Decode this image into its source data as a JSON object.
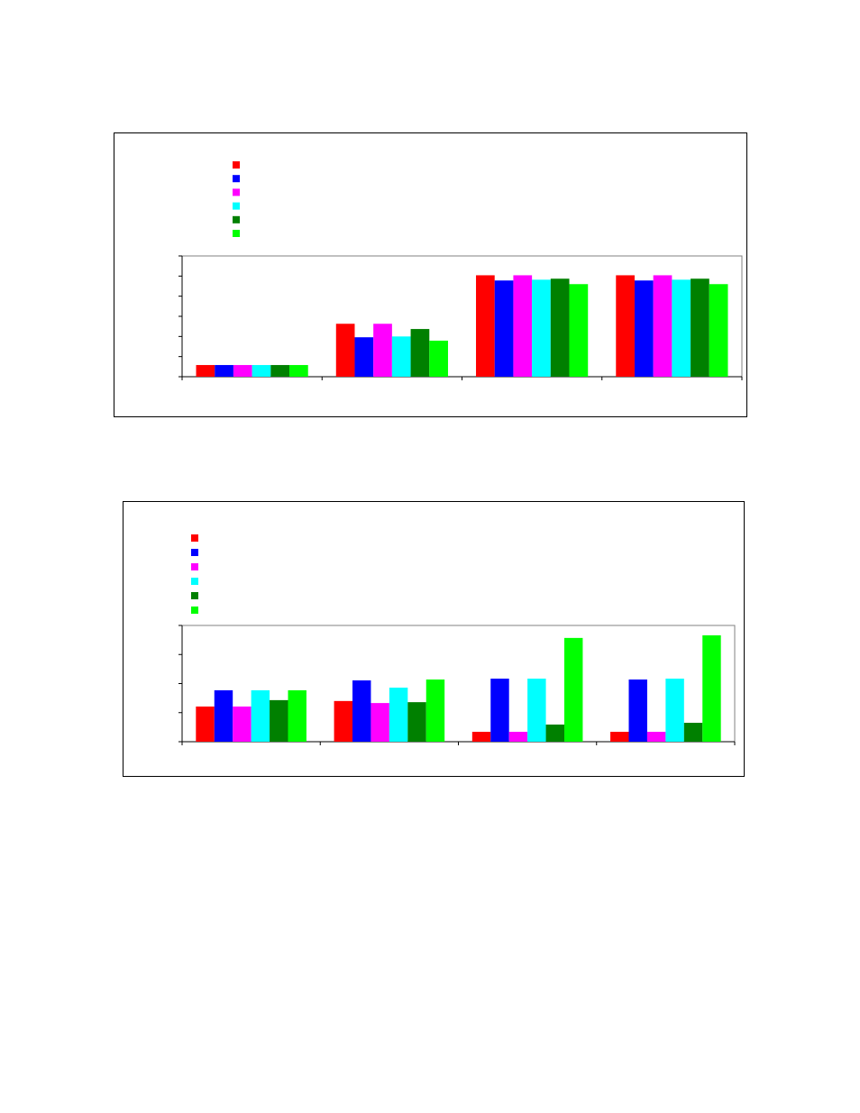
{
  "chart_data": [
    {
      "type": "bar",
      "categories": [
        null,
        null,
        null,
        null
      ],
      "ylim": [
        0,
        6
      ],
      "yticks": [
        0,
        1,
        2,
        3,
        4,
        5,
        6
      ],
      "series": [
        {
          "color": "#ff0000",
          "values": [
            0.58,
            2.63,
            5.04,
            5.04
          ]
        },
        {
          "color": "#0000ff",
          "values": [
            0.58,
            1.96,
            4.78,
            4.78
          ]
        },
        {
          "color": "#ff00ff",
          "values": [
            0.58,
            2.63,
            5.04,
            5.04
          ]
        },
        {
          "color": "#00ffff",
          "values": [
            0.58,
            2.0,
            4.82,
            4.82
          ]
        },
        {
          "color": "#008000",
          "values": [
            0.58,
            2.37,
            4.87,
            4.87
          ]
        },
        {
          "color": "#00ff00",
          "values": [
            0.58,
            1.79,
            4.6,
            4.6
          ]
        }
      ]
    },
    {
      "type": "bar",
      "categories": [
        null,
        null,
        null,
        null
      ],
      "ylim": [
        0,
        4
      ],
      "yticks": [
        0,
        1,
        2,
        3,
        4
      ],
      "series": [
        {
          "color": "#ff0000",
          "values": [
            1.21,
            1.4,
            0.34,
            0.34
          ]
        },
        {
          "color": "#0000ff",
          "values": [
            1.77,
            2.11,
            2.17,
            2.14
          ]
        },
        {
          "color": "#ff00ff",
          "values": [
            1.21,
            1.33,
            0.34,
            0.34
          ]
        },
        {
          "color": "#00ffff",
          "values": [
            1.77,
            1.86,
            2.17,
            2.17
          ]
        },
        {
          "color": "#008000",
          "values": [
            1.43,
            1.36,
            0.59,
            0.65
          ]
        },
        {
          "color": "#00ff00",
          "values": [
            1.77,
            2.14,
            3.57,
            3.66
          ]
        }
      ]
    }
  ]
}
